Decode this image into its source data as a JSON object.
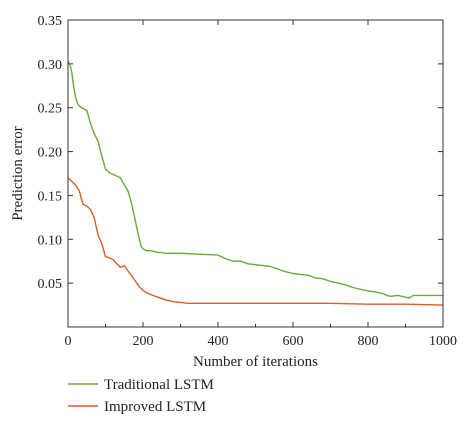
{
  "chart_data": {
    "type": "line",
    "title": "",
    "xlabel": "Number of iterations",
    "ylabel": "Prediction error",
    "xlim": [
      0,
      1000
    ],
    "ylim": [
      0.0,
      0.35
    ],
    "x_ticks": [
      0,
      200,
      400,
      600,
      800,
      1000
    ],
    "x_tick_labels": [
      "0",
      "200",
      "400",
      "600",
      "800",
      "1000"
    ],
    "y_ticks": [
      0.05,
      0.1,
      0.15,
      0.2,
      0.25,
      0.3,
      0.35
    ],
    "y_tick_labels": [
      "0.05",
      "0.10",
      "0.15",
      "0.20",
      "0.25",
      "0.30",
      "0.35"
    ],
    "grid": false,
    "legend_position": "bottom-left, below plot",
    "series": [
      {
        "name": "Traditional LSTM",
        "color": "#6aaa3a",
        "x": [
          0,
          5,
          10,
          15,
          20,
          25,
          30,
          40,
          50,
          55,
          60,
          70,
          80,
          90,
          100,
          110,
          120,
          130,
          140,
          150,
          160,
          170,
          180,
          190,
          195,
          200,
          210,
          220,
          230,
          240,
          250,
          260,
          280,
          300,
          350,
          400,
          420,
          440,
          460,
          480,
          500,
          520,
          540,
          560,
          580,
          600,
          620,
          640,
          660,
          680,
          700,
          720,
          740,
          760,
          780,
          800,
          820,
          840,
          850,
          860,
          880,
          900,
          910,
          920,
          940,
          960,
          980,
          1000
        ],
        "y": [
          0.303,
          0.3,
          0.29,
          0.275,
          0.262,
          0.255,
          0.252,
          0.249,
          0.247,
          0.24,
          0.232,
          0.22,
          0.212,
          0.195,
          0.18,
          0.176,
          0.174,
          0.172,
          0.17,
          0.162,
          0.155,
          0.14,
          0.12,
          0.1,
          0.092,
          0.089,
          0.087,
          0.087,
          0.086,
          0.085,
          0.085,
          0.084,
          0.084,
          0.084,
          0.083,
          0.082,
          0.078,
          0.075,
          0.075,
          0.072,
          0.071,
          0.07,
          0.069,
          0.066,
          0.063,
          0.061,
          0.06,
          0.059,
          0.056,
          0.055,
          0.052,
          0.05,
          0.048,
          0.045,
          0.043,
          0.041,
          0.04,
          0.038,
          0.036,
          0.035,
          0.036,
          0.034,
          0.033,
          0.036,
          0.036,
          0.036,
          0.036,
          0.036
        ]
      },
      {
        "name": "Improved LSTM",
        "color": "#d95f2b",
        "x": [
          0,
          5,
          10,
          20,
          30,
          40,
          50,
          60,
          70,
          80,
          90,
          100,
          110,
          120,
          130,
          140,
          150,
          160,
          170,
          180,
          190,
          200,
          210,
          220,
          240,
          260,
          280,
          300,
          320,
          400,
          500,
          600,
          700,
          800,
          900,
          1000
        ],
        "y": [
          0.17,
          0.168,
          0.166,
          0.162,
          0.155,
          0.14,
          0.138,
          0.134,
          0.124,
          0.105,
          0.095,
          0.08,
          0.079,
          0.077,
          0.072,
          0.068,
          0.07,
          0.064,
          0.058,
          0.052,
          0.046,
          0.042,
          0.039,
          0.037,
          0.034,
          0.031,
          0.029,
          0.028,
          0.027,
          0.027,
          0.027,
          0.027,
          0.027,
          0.026,
          0.026,
          0.025
        ]
      }
    ]
  }
}
